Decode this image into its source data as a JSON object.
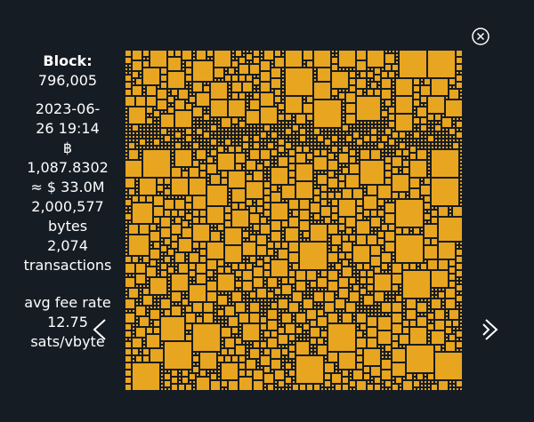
{
  "block": {
    "label": "Block:",
    "height": "796,005",
    "timestamp_line1": "2023-06-",
    "timestamp_line2": "26 19:14",
    "btc_symbol": "฿",
    "btc_amount": "1,087.8302",
    "usd_value": "≈ $ 33.0M",
    "size_value": "2,000,577",
    "size_unit": "bytes",
    "tx_count": "2,074",
    "tx_unit": "transactions",
    "fee_label": "avg fee rate",
    "fee_value": "12.75",
    "fee_unit": "sats/vbyte"
  },
  "icons": {
    "close": "close-circle-icon",
    "prev": "chevron-left-icon",
    "next": "chevron-right-icon"
  },
  "colors": {
    "background": "#161c24",
    "tx_fill": "#e8a520",
    "text": "#ffffff"
  }
}
